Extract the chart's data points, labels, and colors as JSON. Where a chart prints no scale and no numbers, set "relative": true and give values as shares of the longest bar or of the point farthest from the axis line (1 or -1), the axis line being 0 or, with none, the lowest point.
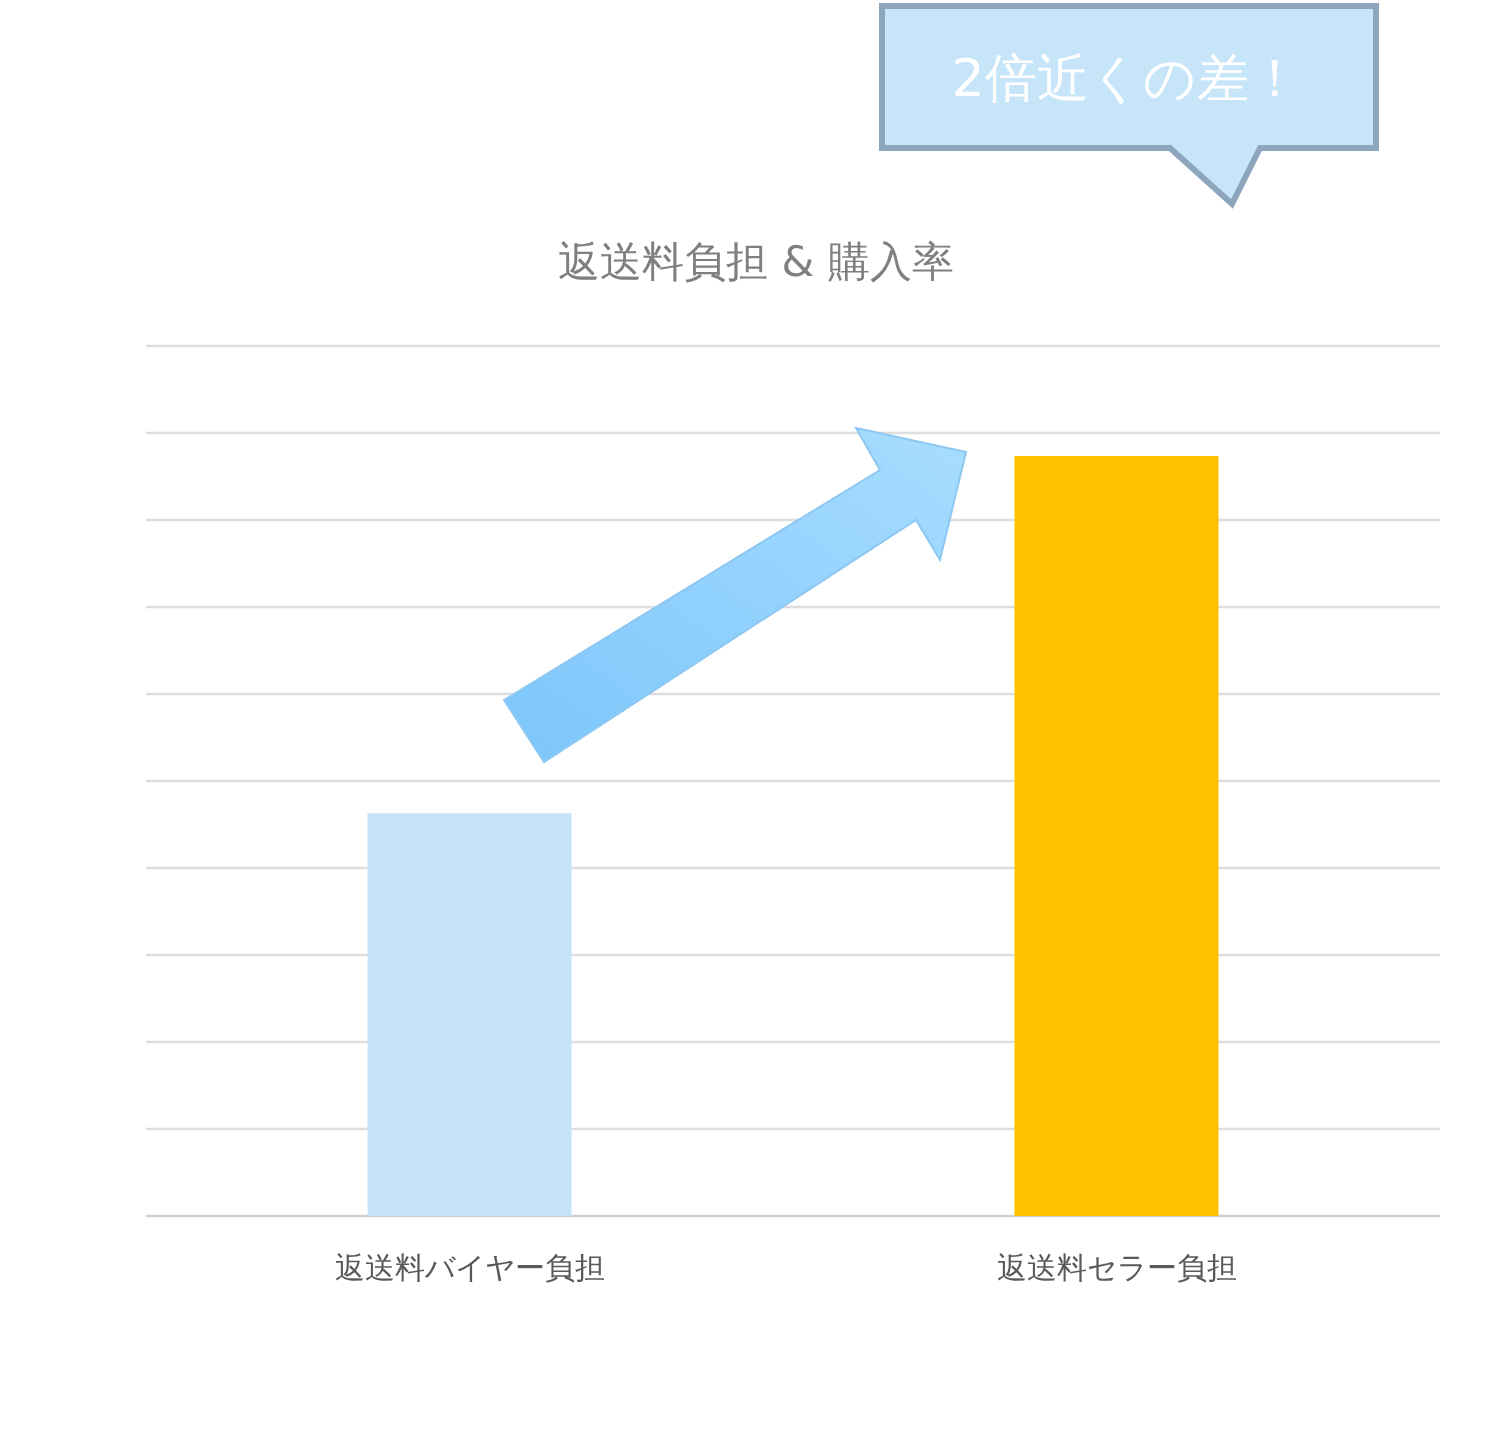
{
  "chart_data": {
    "type": "bar",
    "title": "返送料負担 & 購入率",
    "categories": [
      "返送料バイヤー負担",
      "返送料セラー負担"
    ],
    "values": [
      0.53,
      1
    ],
    "colors": [
      "#c5e3f7",
      "#ffc000"
    ],
    "relative": true,
    "grid": "y",
    "annotations": [
      "2倍近くの差！"
    ]
  }
}
